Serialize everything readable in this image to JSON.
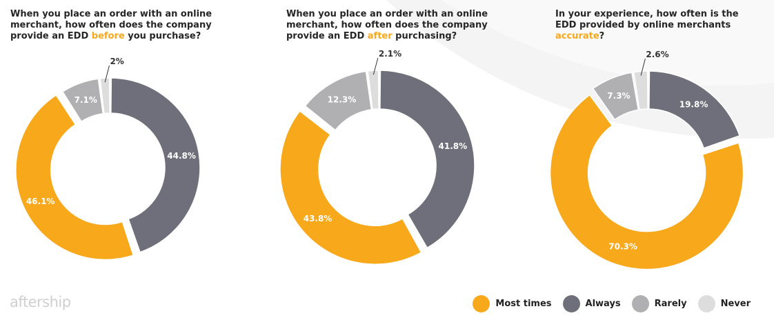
{
  "brand": "aftership",
  "legend": [
    {
      "label": "Most times",
      "color": "#F7A81B"
    },
    {
      "label": "Always",
      "color": "#6E6F7A"
    },
    {
      "label": "Rarely",
      "color": "#B0B0B2"
    },
    {
      "label": "Never",
      "color": "#DDDDDD"
    }
  ],
  "chart_data": [
    {
      "type": "pie",
      "donut": true,
      "title_parts": [
        "When you place an order with an online merchant, how often does the company provide an EDD ",
        "before",
        " you purchase?"
      ],
      "slices": [
        {
          "category": "Always",
          "value": 44.8,
          "label": "44.8%",
          "color": "#6E6F7A"
        },
        {
          "category": "Most times",
          "value": 46.1,
          "label": "46.1%",
          "color": "#F7A81B"
        },
        {
          "category": "Rarely",
          "value": 7.1,
          "label": "7.1%",
          "color": "#B0B0B2"
        },
        {
          "category": "Never",
          "value": 2.0,
          "label": "2%",
          "color": "#DDDDDD"
        }
      ]
    },
    {
      "type": "pie",
      "donut": true,
      "title_parts": [
        "When you place an order with an online merchant, how often does the company provide an EDD ",
        "after",
        " purchasing?"
      ],
      "slices": [
        {
          "category": "Always",
          "value": 41.8,
          "label": "41.8%",
          "color": "#6E6F7A"
        },
        {
          "category": "Most times",
          "value": 43.8,
          "label": "43.8%",
          "color": "#F7A81B"
        },
        {
          "category": "Rarely",
          "value": 12.3,
          "label": "12.3%",
          "color": "#B0B0B2"
        },
        {
          "category": "Never",
          "value": 2.1,
          "label": "2.1%",
          "color": "#DDDDDD"
        }
      ]
    },
    {
      "type": "pie",
      "donut": true,
      "title_parts": [
        "In your experience, how often is the EDD provided by online merchants ",
        "accurate",
        "?"
      ],
      "slices": [
        {
          "category": "Always",
          "value": 19.8,
          "label": "19.8%",
          "color": "#6E6F7A"
        },
        {
          "category": "Most times",
          "value": 70.3,
          "label": "70.3%",
          "color": "#F7A81B"
        },
        {
          "category": "Rarely",
          "value": 7.3,
          "label": "7.3%",
          "color": "#B0B0B2"
        },
        {
          "category": "Never",
          "value": 2.6,
          "label": "2.6%",
          "color": "#DDDDDD"
        }
      ]
    }
  ]
}
